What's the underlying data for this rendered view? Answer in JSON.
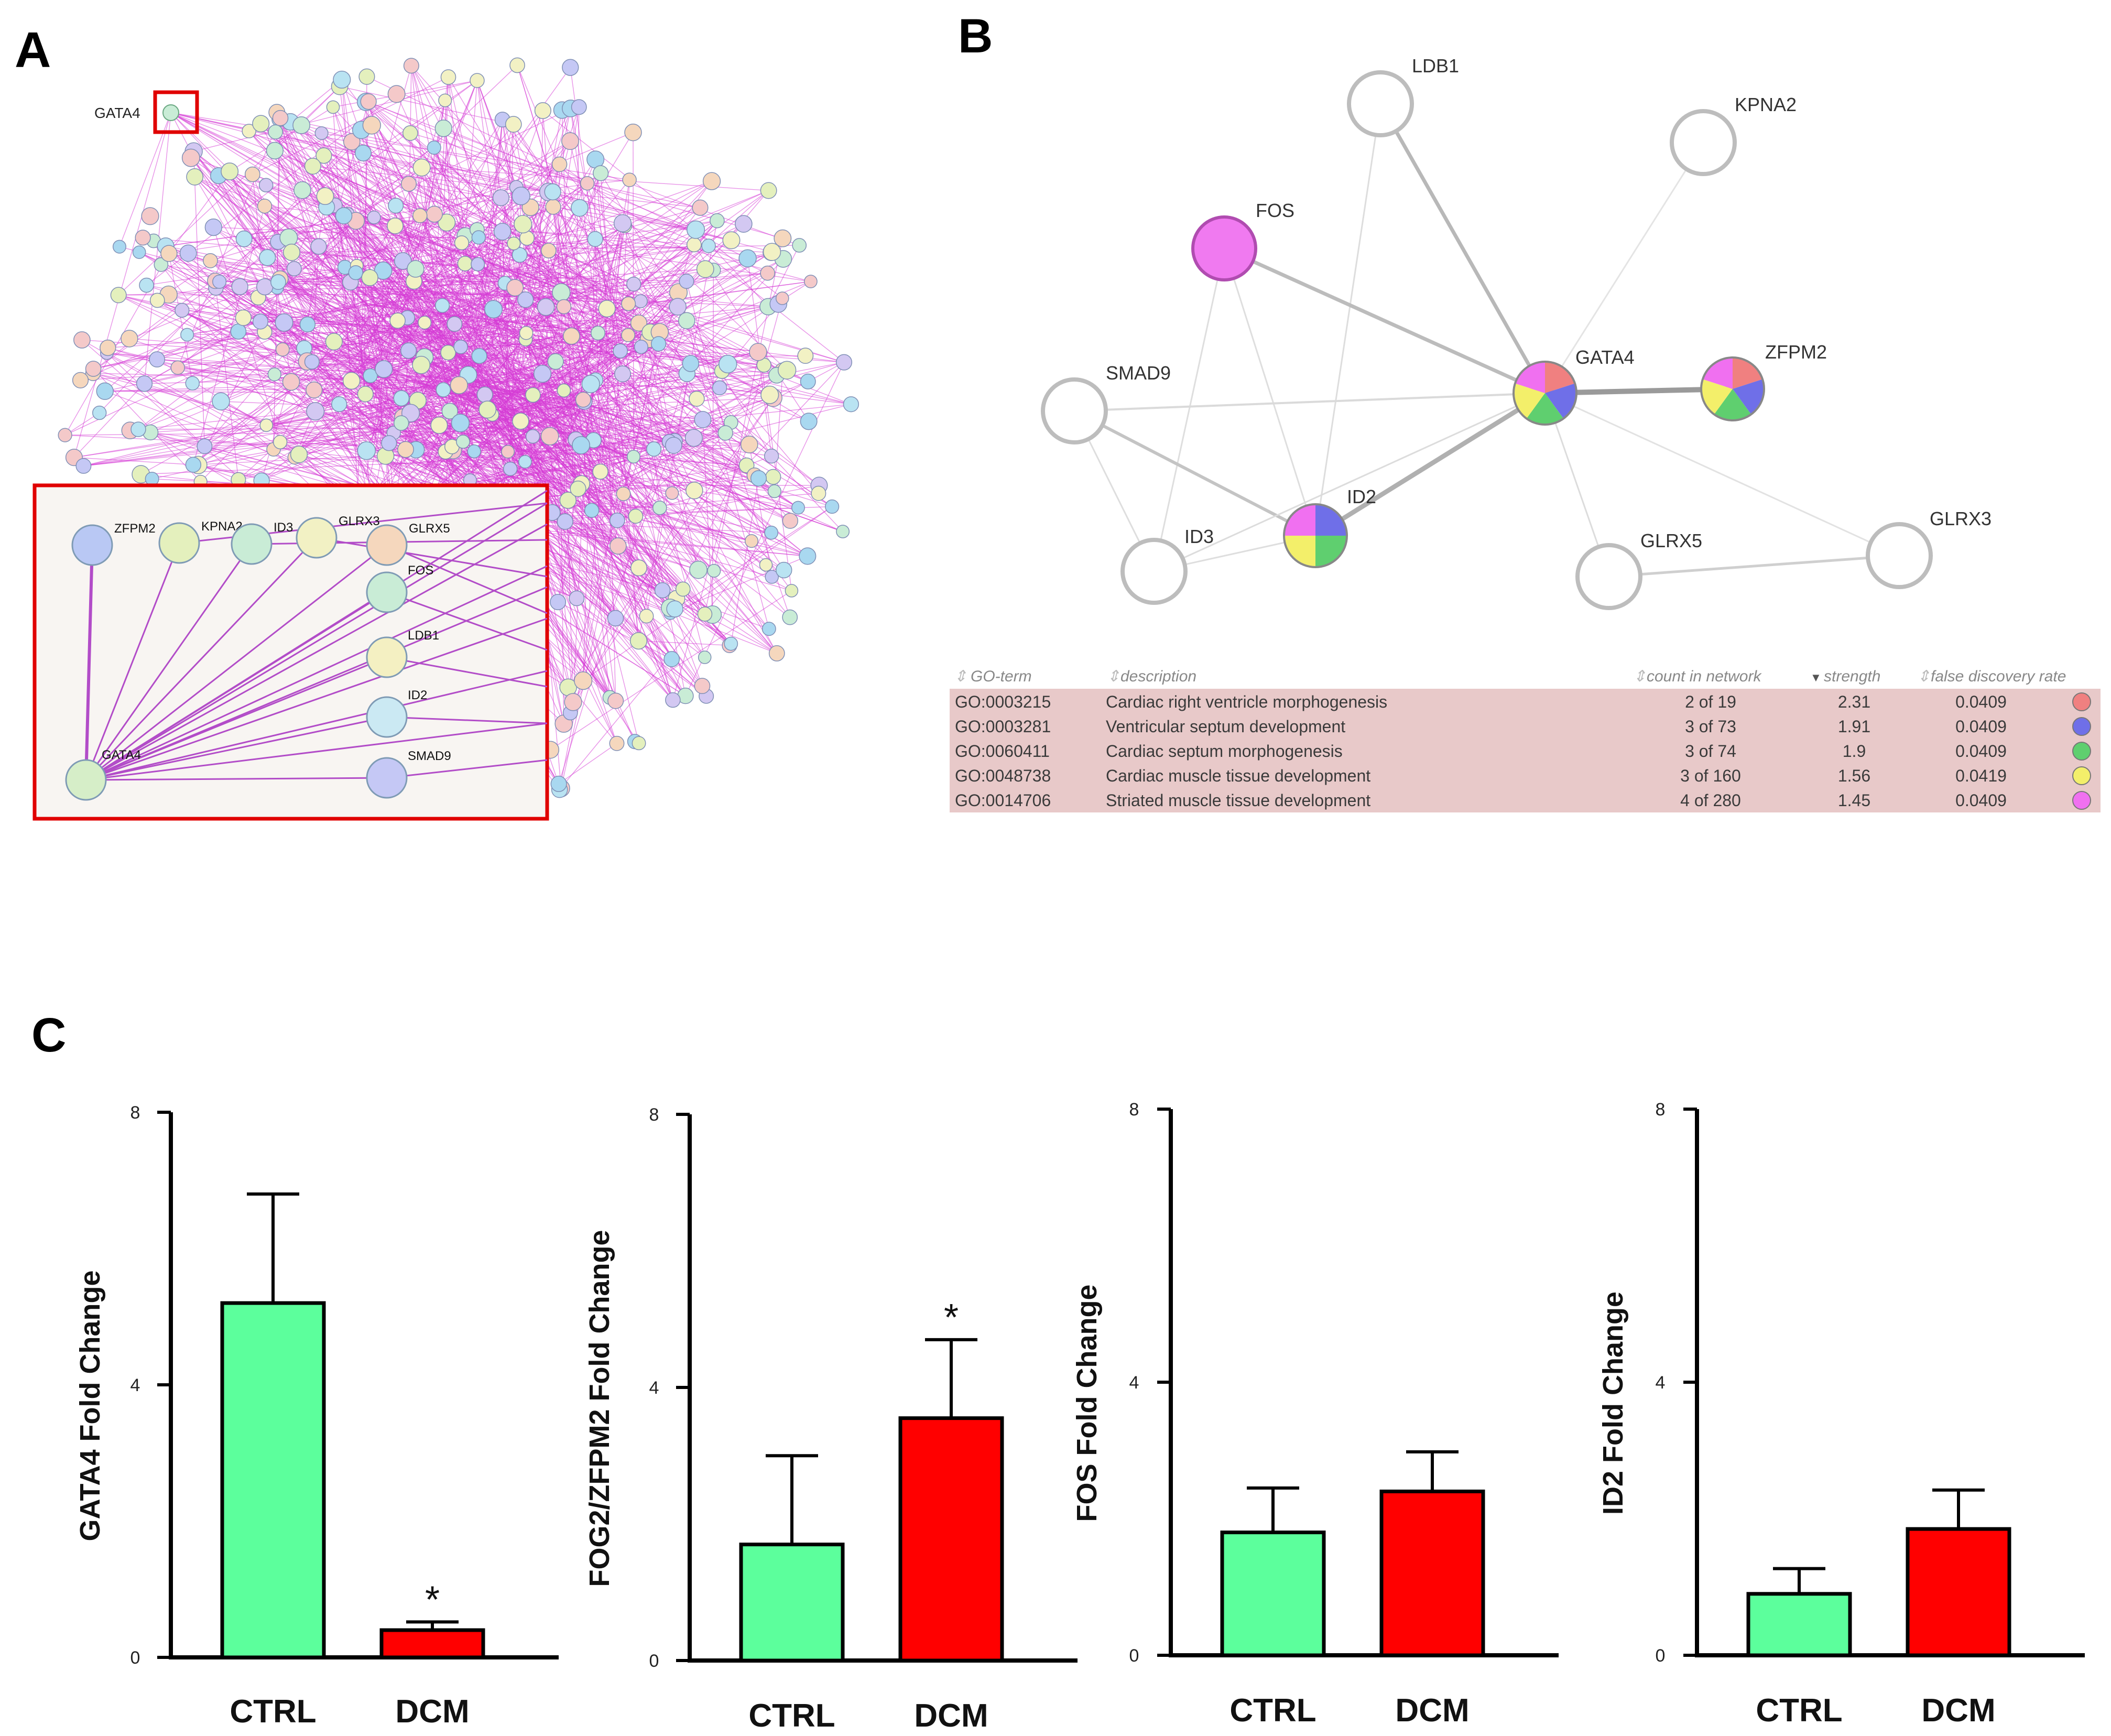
{
  "panels": {
    "a": "A",
    "b": "B",
    "c": "C"
  },
  "panel_a": {
    "highlight_label": "GATA4",
    "inset_nodes": [
      {
        "label": "ZFPM2",
        "color": "#b9c8f4"
      },
      {
        "label": "KPNA2",
        "color": "#e4f0bd"
      },
      {
        "label": "ID3",
        "color": "#c9ecd6"
      },
      {
        "label": "GLRX3",
        "color": "#f2f1c4"
      },
      {
        "label": "GLRX5",
        "color": "#f5d7bd"
      },
      {
        "label": "FOS",
        "color": "#c9ecd6"
      },
      {
        "label": "LDB1",
        "color": "#f4f0c2"
      },
      {
        "label": "ID2",
        "color": "#cbe9f3"
      },
      {
        "label": "SMAD9",
        "color": "#c5c8f5"
      },
      {
        "label": "GATA4",
        "color": "#d6eec8"
      }
    ],
    "edge_color": "#cc33cc",
    "frame_color": "#e00000"
  },
  "panel_b": {
    "nodes": {
      "ldb1": "LDB1",
      "kpna2": "KPNA2",
      "fos": "FOS",
      "smad9": "SMAD9",
      "gata4": "GATA4",
      "zfpm2": "ZFPM2",
      "id2": "ID2",
      "id3": "ID3",
      "glrx5": "GLRX5",
      "glrx3": "GLRX3"
    },
    "table": {
      "headers": [
        "GO-term",
        "description",
        "count in network",
        "strength",
        "false discovery rate"
      ],
      "rows": [
        {
          "term": "GO:0003215",
          "description": "Cardiac right ventricle morphogenesis",
          "count": "2 of 19",
          "strength": "2.31",
          "fdr": "0.0409",
          "color": "#f08080"
        },
        {
          "term": "GO:0003281",
          "description": "Ventricular septum development",
          "count": "3 of 73",
          "strength": "1.91",
          "fdr": "0.0409",
          "color": "#6f6fe8"
        },
        {
          "term": "GO:0060411",
          "description": "Cardiac septum morphogenesis",
          "count": "3 of 74",
          "strength": "1.9",
          "fdr": "0.0409",
          "color": "#5fcf6f"
        },
        {
          "term": "GO:0048738",
          "description": "Cardiac muscle tissue development",
          "count": "3 of 160",
          "strength": "1.56",
          "fdr": "0.0419",
          "color": "#f3ef6a"
        },
        {
          "term": "GO:0014706",
          "description": "Striated muscle tissue development",
          "count": "4 of 280",
          "strength": "1.45",
          "fdr": "0.0409",
          "color": "#f070f0"
        }
      ],
      "background": "#e8c9c9"
    }
  },
  "chart_data": [
    {
      "type": "bar",
      "categories": [
        "CTRL",
        "DCM"
      ],
      "values": [
        5.2,
        0.4
      ],
      "errors": [
        1.6,
        0.12
      ],
      "significance": [
        "",
        "*"
      ],
      "ylabel": "GATA4 Fold Change",
      "ylim": [
        0,
        8
      ],
      "yticks": [
        "0",
        "4",
        "8"
      ],
      "colors": [
        "#5cff9c",
        "#ff0000"
      ]
    },
    {
      "type": "bar",
      "categories": [
        "CTRL",
        "DCM"
      ],
      "values": [
        1.7,
        3.55
      ],
      "errors": [
        1.3,
        1.15
      ],
      "significance": [
        "",
        "*"
      ],
      "ylabel": "FOG2/ZFPM2 Fold Change",
      "ylim": [
        0,
        8
      ],
      "yticks": [
        "0",
        "4",
        "8"
      ],
      "colors": [
        "#5cff9c",
        "#ff0000"
      ]
    },
    {
      "type": "bar",
      "categories": [
        "CTRL",
        "DCM"
      ],
      "values": [
        1.8,
        2.4
      ],
      "errors": [
        0.65,
        0.58
      ],
      "significance": [
        "",
        ""
      ],
      "ylabel": "FOS Fold Change",
      "ylim": [
        0,
        8
      ],
      "yticks": [
        "0",
        "4",
        "8"
      ],
      "colors": [
        "#5cff9c",
        "#ff0000"
      ]
    },
    {
      "type": "bar",
      "categories": [
        "CTRL",
        "DCM"
      ],
      "values": [
        0.9,
        1.85
      ],
      "errors": [
        0.37,
        0.57
      ],
      "significance": [
        "",
        ""
      ],
      "ylabel": "ID2 Fold Change",
      "ylim": [
        0,
        8
      ],
      "yticks": [
        "0",
        "4",
        "8"
      ],
      "colors": [
        "#5cff9c",
        "#ff0000"
      ]
    }
  ]
}
